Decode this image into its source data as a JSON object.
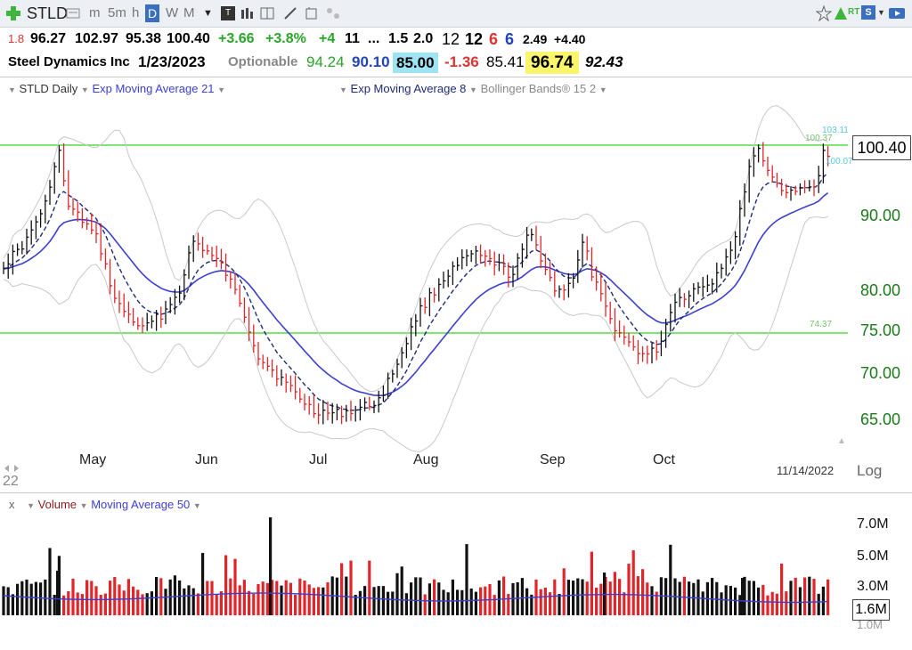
{
  "toolbar": {
    "symbol": "STLD",
    "intervals": [
      "m",
      "5m",
      "h",
      "D",
      "W",
      "M"
    ],
    "active_interval": "D"
  },
  "quote_row": {
    "small_value": "1.8",
    "open": "96.27",
    "high": "102.97",
    "low": "95.38",
    "close": "100.40",
    "change": "+3.66",
    "change_pct": "+3.8%",
    "v1": "+4",
    "v2": "11",
    "ellipsis": "...",
    "v3": "1.5",
    "v4": "2.0",
    "v5": "12",
    "v6": "12",
    "v7": "6",
    "v8": "6",
    "v9": "2.49",
    "v10": "+4.40"
  },
  "info_row": {
    "company": "Steel Dynamics Inc",
    "date": "1/23/2023",
    "optionable": "Optionable",
    "val1": "94.24",
    "val2": "90.10",
    "val3": "85.00",
    "val4": "-1.36",
    "val5": "85.41",
    "val6": "96.74",
    "val7": "92.43"
  },
  "indicators": {
    "main": "STLD Daily",
    "ema21": "Exp Moving Average 21",
    "ema8": "Exp Moving Average 8",
    "bb": "Bollinger Bands® 15 2"
  },
  "price_axis": {
    "labels": [
      "90.00",
      "80.00",
      "75.00",
      "70.00",
      "65.00"
    ],
    "current": "100.40",
    "log_label": "Log"
  },
  "hlines": {
    "upper_label": "100.37",
    "lower_label": "74.37",
    "tag_top": "103.11",
    "tag_mid": "100.07"
  },
  "months": [
    "May",
    "Jun",
    "Jul",
    "Aug",
    "Sep",
    "Oct"
  ],
  "date_stamp": "11/14/2022",
  "corner_label": "22",
  "volume_panel": {
    "close_x": "x",
    "title": "Volume",
    "ma": "Moving Average 50",
    "axis": [
      "7.0M",
      "5.0M",
      "3.0M"
    ],
    "current": "1.6M",
    "partial": "1.0M"
  },
  "colors": {
    "up": "#111111",
    "down": "#e0262b",
    "ema21": "#3b3fd0",
    "ema8": "#1d2a7a",
    "bb": "#c8c8c8",
    "hline": "#55dd44",
    "green_text": "#1a7a1a"
  }
}
